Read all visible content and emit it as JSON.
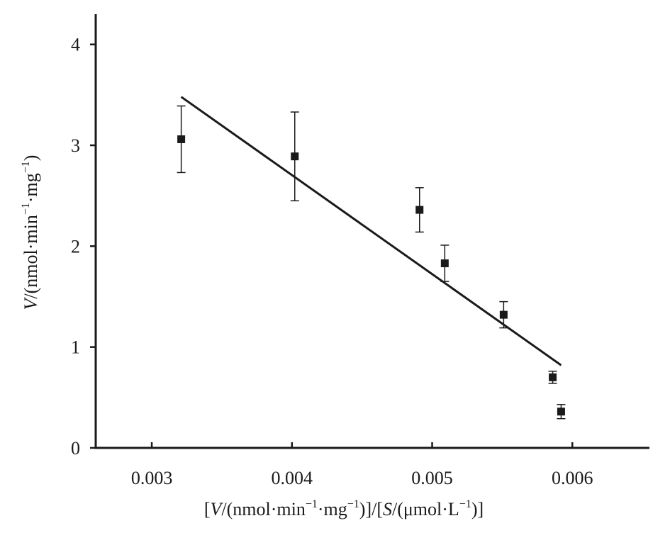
{
  "chart_data": {
    "type": "scatter",
    "title": "",
    "xlabel": {
      "p1": "[",
      "v": "V",
      "p2": "/(nmol·min",
      "sup1": "−1",
      "p3": "·mg",
      "sup2": "−1",
      "p4": ")]/[",
      "s": "S",
      "p5": "/(μmol·L",
      "sup3": "−1",
      "p6": ")]"
    },
    "ylabel": {
      "v": "V",
      "p1": "/(nmol·min",
      "sup1": "−1",
      "p2": "·mg",
      "sup2": "−1",
      "p3": ")"
    },
    "xlim": [
      0.0026,
      0.00655
    ],
    "ylim": [
      0,
      4.3
    ],
    "x_ticks": [
      0.003,
      0.004,
      0.005,
      0.006
    ],
    "x_tick_labels": [
      "0.003",
      "0.004",
      "0.005",
      "0.006"
    ],
    "y_ticks": [
      0,
      1,
      2,
      3,
      4
    ],
    "y_tick_labels": [
      "0",
      "1",
      "2",
      "3",
      "4"
    ],
    "grid": false,
    "legend": "none",
    "color": "#1a1a1a",
    "series": [
      {
        "points": [
          {
            "x": 0.00321,
            "y": 3.06,
            "err": 0.33
          },
          {
            "x": 0.00402,
            "y": 2.89,
            "err": 0.44
          },
          {
            "x": 0.00491,
            "y": 2.36,
            "err": 0.22
          },
          {
            "x": 0.00509,
            "y": 1.83,
            "err": 0.18
          },
          {
            "x": 0.00551,
            "y": 1.32,
            "err": 0.13
          },
          {
            "x": 0.00586,
            "y": 0.7,
            "err": 0.06
          },
          {
            "x": 0.00592,
            "y": 0.36,
            "err": 0.07
          }
        ]
      }
    ],
    "trendline": {
      "x": [
        0.00321,
        0.00592
      ],
      "y": [
        3.48,
        0.82
      ]
    }
  }
}
